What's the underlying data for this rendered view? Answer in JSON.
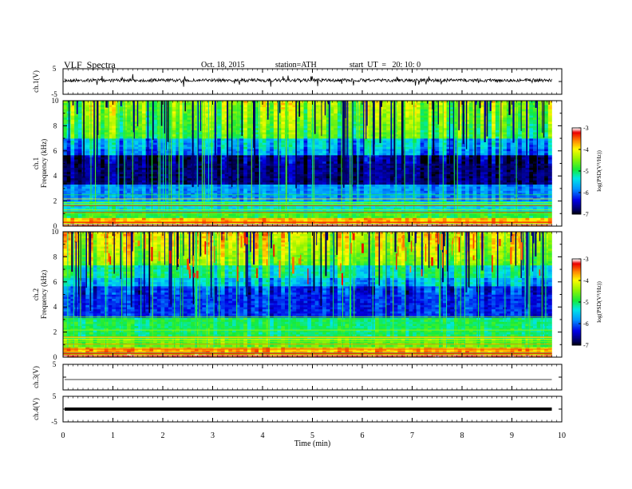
{
  "header": {
    "title": "VLF  Spectra",
    "date": "Oct. 18, 2015",
    "station": "station=ATH",
    "start": "start  UT  =   20: 10: 0"
  },
  "chart_data": [
    {
      "id": "ch1-waveform",
      "type": "line",
      "ylabel": "ch.1(V)",
      "yticks": [
        "5",
        "-5"
      ],
      "ylim": [
        -5,
        5
      ],
      "note": "noisy waveform near 0 V with positive offset",
      "x_range_min": [
        0,
        9.8
      ]
    },
    {
      "id": "ch1-spectrogram",
      "type": "heatmap",
      "ylabel": "Frequency  (kHz)",
      "channel_label": "ch.1",
      "yticks": [
        "0",
        "2",
        "4",
        "6",
        "8",
        "10"
      ],
      "ylim": [
        0,
        10
      ],
      "colorbar": {
        "label": "log(PSD(V²/Hz))",
        "ticks": [
          "-3",
          "-4",
          "-5",
          "-6",
          "-7"
        ],
        "range": [
          -7,
          -3
        ]
      }
    },
    {
      "id": "ch2-spectrogram",
      "type": "heatmap",
      "ylabel": "Frequency  (kHz)",
      "channel_label": "ch.2",
      "yticks": [
        "0",
        "2",
        "4",
        "6",
        "8",
        "10"
      ],
      "ylim": [
        0,
        10
      ],
      "colorbar": {
        "label": "log(PSD(V²/Hz))",
        "ticks": [
          "-3",
          "-4",
          "-5",
          "-6",
          "-7"
        ],
        "range": [
          -7,
          -3
        ]
      }
    },
    {
      "id": "ch3-waveform",
      "type": "line",
      "ylabel": "ch.3(V)",
      "yticks": [
        "5"
      ],
      "note": "flat trace just below zero"
    },
    {
      "id": "ch4-waveform",
      "type": "line",
      "ylabel": "ch.4(V)",
      "yticks": [
        "5",
        "-5"
      ],
      "ylim": [
        -5,
        5
      ],
      "note": "thick flat line at about 0 V"
    },
    {
      "id": "time-axis",
      "xlabel": "Time  (min)",
      "xticks": [
        "0",
        "1",
        "2",
        "3",
        "4",
        "5",
        "6",
        "7",
        "8",
        "9",
        "10"
      ],
      "xlim": [
        0,
        10
      ]
    }
  ]
}
